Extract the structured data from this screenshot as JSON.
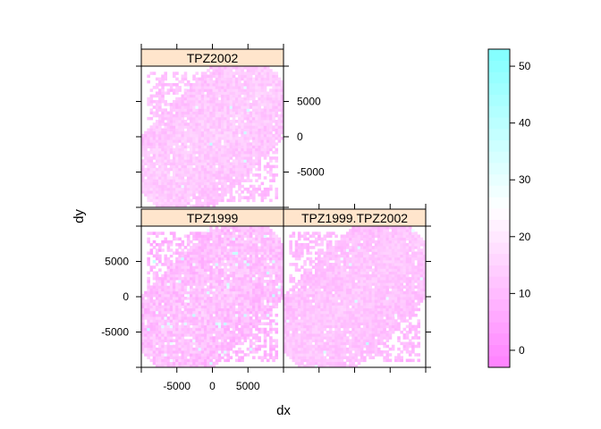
{
  "chart_data": {
    "type": "heatmap",
    "xlabel": "dx",
    "ylabel": "dy",
    "xlim": [
      -10000,
      10000
    ],
    "ylim": [
      -10000,
      10000
    ],
    "x_ticks": [
      -5000,
      0,
      5000
    ],
    "y_ticks": [
      -5000,
      0,
      5000
    ],
    "grid": false,
    "panels": [
      {
        "name": "TPZ2002",
        "row": 0,
        "col": 0,
        "typical_value": 14,
        "spread": 3.5,
        "seed": 11,
        "bright_spots": 2
      },
      {
        "name": "TPZ1999",
        "row": 1,
        "col": 0,
        "typical_value": 12,
        "spread": 4.5,
        "seed": 27,
        "bright_spots": 14
      },
      {
        "name": "TPZ1999.TPZ2002",
        "row": 1,
        "col": 1,
        "typical_value": 13,
        "spread": 3.0,
        "seed": 43,
        "bright_spots": 3
      }
    ],
    "colorkey": {
      "min": -3,
      "max": 53,
      "ticks": [
        0,
        10,
        20,
        30,
        40,
        50
      ],
      "low_color": "#FF80FF",
      "mid_color": "#FFFFFF",
      "high_color": "#80FFFF",
      "mid_value": 25
    },
    "strip_color": "#FFE5CC"
  }
}
